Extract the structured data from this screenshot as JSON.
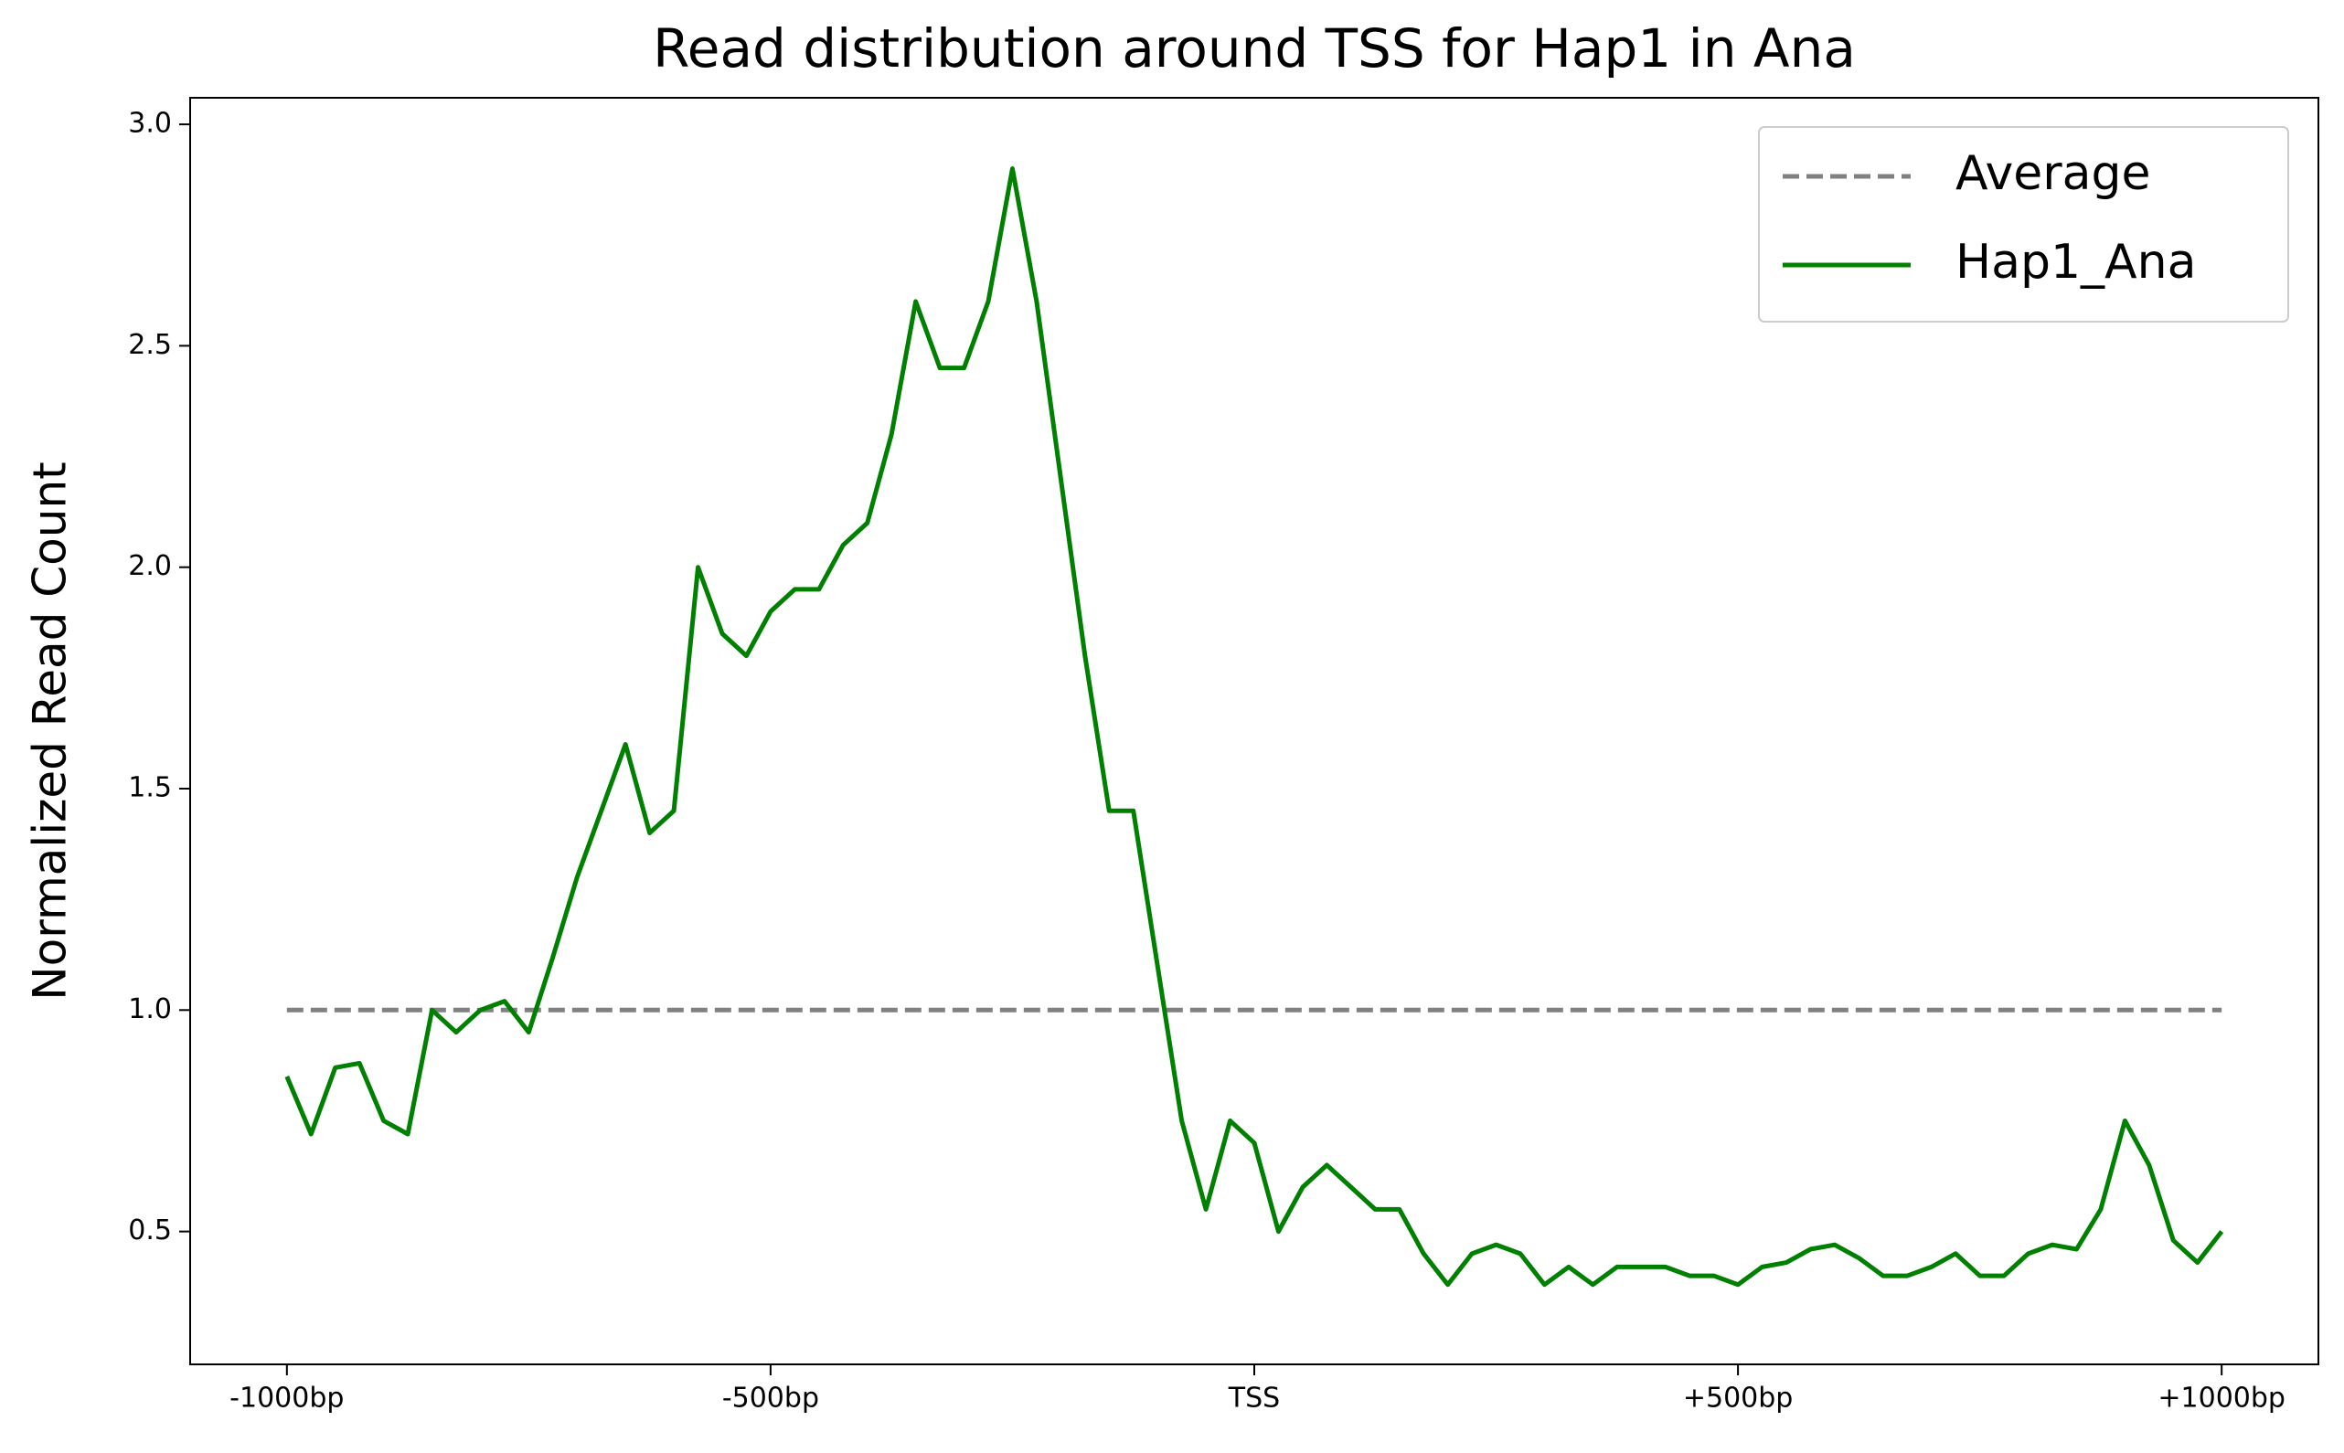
{
  "chart_data": {
    "type": "line",
    "title": "Read distribution around TSS for Hap1 in Ana",
    "y_label": "Normalized Read Count",
    "x": [
      -1000,
      -975,
      -950,
      -925,
      -900,
      -875,
      -850,
      -825,
      -800,
      -775,
      -750,
      -725,
      -700,
      -675,
      -650,
      -625,
      -600,
      -575,
      -550,
      -525,
      -500,
      -475,
      -450,
      -425,
      -400,
      -375,
      -350,
      -325,
      -300,
      -275,
      -250,
      -225,
      -200,
      -175,
      -150,
      -125,
      -100,
      -75,
      -50,
      -25,
      0,
      25,
      50,
      75,
      100,
      125,
      150,
      175,
      200,
      225,
      250,
      275,
      300,
      325,
      350,
      375,
      400,
      425,
      450,
      475,
      500,
      525,
      550,
      575,
      600,
      625,
      650,
      675,
      700,
      725,
      750,
      775,
      800,
      825,
      850,
      875,
      900,
      925,
      950,
      975,
      1000
    ],
    "series": [
      {
        "name": "Average",
        "color": "#808080",
        "dashed": true,
        "values": [
          1,
          1,
          1,
          1,
          1,
          1,
          1,
          1,
          1,
          1,
          1,
          1,
          1,
          1,
          1,
          1,
          1,
          1,
          1,
          1,
          1,
          1,
          1,
          1,
          1,
          1,
          1,
          1,
          1,
          1,
          1,
          1,
          1,
          1,
          1,
          1,
          1,
          1,
          1,
          1,
          1,
          1,
          1,
          1,
          1,
          1,
          1,
          1,
          1,
          1,
          1,
          1,
          1,
          1,
          1,
          1,
          1,
          1,
          1,
          1,
          1,
          1,
          1,
          1,
          1,
          1,
          1,
          1,
          1,
          1,
          1,
          1,
          1,
          1,
          1,
          1,
          1,
          1,
          1,
          1,
          1
        ]
      },
      {
        "name": "Hap1_Ana",
        "color": "#008000",
        "dashed": false,
        "values": [
          0.85,
          0.72,
          0.87,
          0.88,
          0.75,
          0.72,
          1.0,
          0.95,
          1.0,
          1.02,
          0.95,
          1.12,
          1.3,
          1.45,
          1.6,
          1.4,
          1.45,
          2.0,
          1.85,
          1.8,
          1.9,
          1.95,
          1.95,
          2.05,
          2.1,
          2.3,
          2.6,
          2.45,
          2.45,
          2.6,
          2.9,
          2.6,
          2.2,
          1.8,
          1.45,
          1.45,
          1.1,
          0.75,
          0.55,
          0.75,
          0.7,
          0.5,
          0.6,
          0.65,
          0.6,
          0.55,
          0.55,
          0.45,
          0.38,
          0.45,
          0.47,
          0.45,
          0.38,
          0.42,
          0.38,
          0.42,
          0.42,
          0.42,
          0.4,
          0.4,
          0.38,
          0.42,
          0.43,
          0.46,
          0.47,
          0.44,
          0.4,
          0.4,
          0.42,
          0.45,
          0.4,
          0.4,
          0.45,
          0.47,
          0.46,
          0.55,
          0.75,
          0.65,
          0.48,
          0.43,
          0.5
        ]
      }
    ],
    "xlim": [
      -1100,
      1100
    ],
    "ylim": [
      0.2,
      3.06
    ],
    "xticks": [
      {
        "value": -1000,
        "label": "-1000bp"
      },
      {
        "value": -500,
        "label": "-500bp"
      },
      {
        "value": 0,
        "label": "TSS"
      },
      {
        "value": 500,
        "label": "+500bp"
      },
      {
        "value": 1000,
        "label": "+1000bp"
      }
    ],
    "yticks": [
      {
        "value": 0.5,
        "label": "0.5"
      },
      {
        "value": 1.0,
        "label": "1.0"
      },
      {
        "value": 1.5,
        "label": "1.5"
      },
      {
        "value": 2.0,
        "label": "2.0"
      },
      {
        "value": 2.5,
        "label": "2.5"
      },
      {
        "value": 3.0,
        "label": "3.0"
      }
    ],
    "legend": "upper right"
  }
}
